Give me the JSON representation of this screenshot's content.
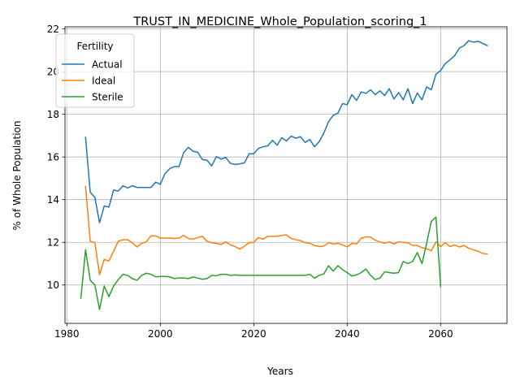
{
  "chart_data": {
    "type": "line",
    "title": "TRUST_IN_MEDICINE_Whole_Population_scoring_1",
    "xlabel": "Years",
    "ylabel": "% of Whole Population",
    "xlim": [
      1979.6,
      2074.2
    ],
    "ylim": [
      8.2,
      22.1
    ],
    "x_ticks": [
      1980,
      2000,
      2020,
      2040,
      2060
    ],
    "y_ticks": [
      10,
      12,
      14,
      16,
      18,
      20,
      22
    ],
    "grid": true,
    "legend": {
      "title": "Fertility",
      "position": "top-left"
    },
    "series": [
      {
        "name": "Actual",
        "color": "#1f77b4",
        "x": [
          1984,
          1985,
          1986,
          1987,
          1988,
          1989,
          1990,
          1991,
          1992,
          1993,
          1994,
          1995,
          1996,
          1997,
          1998,
          1999,
          2000,
          2001,
          2002,
          2003,
          2004,
          2005,
          2006,
          2007,
          2008,
          2009,
          2010,
          2011,
          2012,
          2013,
          2014,
          2015,
          2016,
          2017,
          2018,
          2019,
          2020,
          2021,
          2022,
          2023,
          2024,
          2025,
          2026,
          2027,
          2028,
          2029,
          2030,
          2031,
          2032,
          2033,
          2034,
          2035,
          2036,
          2037,
          2038,
          2039,
          2040,
          2041,
          2042,
          2043,
          2044,
          2045,
          2046,
          2047,
          2048,
          2049,
          2050,
          2051,
          2052,
          2053,
          2054,
          2055,
          2056,
          2057,
          2058,
          2059,
          2060,
          2061,
          2062,
          2063,
          2064,
          2065,
          2066,
          2067,
          2068,
          2069,
          2070
        ],
        "values": [
          16.92,
          14.35,
          14.1,
          12.92,
          13.7,
          13.65,
          14.45,
          14.4,
          14.65,
          14.55,
          14.65,
          14.57,
          14.57,
          14.57,
          14.57,
          14.82,
          14.72,
          15.22,
          15.45,
          15.55,
          15.55,
          16.2,
          16.45,
          16.27,
          16.22,
          15.88,
          15.85,
          15.58,
          16.02,
          15.9,
          15.98,
          15.7,
          15.65,
          15.68,
          15.72,
          16.15,
          16.15,
          16.4,
          16.48,
          16.52,
          16.78,
          16.55,
          16.9,
          16.75,
          16.98,
          16.88,
          16.95,
          16.68,
          16.82,
          16.48,
          16.72,
          17.12,
          17.65,
          17.95,
          18.05,
          18.5,
          18.45,
          18.92,
          18.65,
          19.05,
          18.98,
          19.15,
          18.92,
          19.1,
          18.88,
          19.2,
          18.72,
          19.02,
          18.68,
          19.2,
          18.5,
          19.0,
          18.68,
          19.28,
          19.15,
          19.88,
          20.05,
          20.38,
          20.55,
          20.75,
          21.1,
          21.22,
          21.45,
          21.38,
          21.42,
          21.32,
          21.22
        ]
      },
      {
        "name": "Ideal",
        "color": "#ff7f0e",
        "x": [
          1984,
          1985,
          1986,
          1987,
          1988,
          1989,
          1990,
          1991,
          1992,
          1993,
          1994,
          1995,
          1996,
          1997,
          1998,
          1999,
          2000,
          2001,
          2002,
          2003,
          2004,
          2005,
          2006,
          2007,
          2008,
          2009,
          2010,
          2011,
          2012,
          2013,
          2014,
          2015,
          2016,
          2017,
          2018,
          2019,
          2020,
          2021,
          2022,
          2023,
          2024,
          2025,
          2026,
          2027,
          2028,
          2029,
          2030,
          2031,
          2032,
          2033,
          2034,
          2035,
          2036,
          2037,
          2038,
          2039,
          2040,
          2041,
          2042,
          2043,
          2044,
          2045,
          2046,
          2047,
          2048,
          2049,
          2050,
          2051,
          2052,
          2053,
          2054,
          2055,
          2056,
          2057,
          2058,
          2059,
          2060,
          2061,
          2062,
          2063,
          2064,
          2065,
          2066,
          2067,
          2068,
          2069,
          2070
        ],
        "values": [
          14.62,
          12.05,
          11.98,
          10.48,
          11.2,
          11.12,
          11.58,
          12.05,
          12.12,
          12.12,
          11.98,
          11.78,
          11.95,
          12.02,
          12.3,
          12.3,
          12.2,
          12.2,
          12.2,
          12.18,
          12.2,
          12.32,
          12.18,
          12.15,
          12.22,
          12.28,
          12.05,
          11.98,
          11.95,
          11.9,
          12.02,
          11.88,
          11.8,
          11.68,
          11.82,
          11.98,
          12.0,
          12.22,
          12.15,
          12.28,
          12.28,
          12.28,
          12.32,
          12.35,
          12.18,
          12.12,
          12.08,
          11.98,
          11.95,
          11.85,
          11.8,
          11.82,
          11.98,
          11.92,
          11.95,
          11.88,
          11.78,
          11.95,
          11.92,
          12.2,
          12.25,
          12.25,
          12.1,
          12.02,
          11.95,
          12.02,
          11.92,
          12.02,
          12.0,
          11.98,
          11.85,
          11.85,
          11.75,
          11.7,
          11.6,
          12.02,
          11.8,
          11.98,
          11.8,
          11.88,
          11.78,
          11.85,
          11.72,
          11.65,
          11.58,
          11.48,
          11.45
        ]
      },
      {
        "name": "Sterile",
        "color": "#2ca02c",
        "x": [
          1983,
          1984,
          1985,
          1986,
          1987,
          1988,
          1989,
          1990,
          1991,
          1992,
          1993,
          1994,
          1995,
          1996,
          1997,
          1998,
          1999,
          2000,
          2001,
          2002,
          2003,
          2004,
          2005,
          2006,
          2007,
          2008,
          2009,
          2010,
          2011,
          2012,
          2013,
          2014,
          2015,
          2016,
          2017,
          2018,
          2019,
          2020,
          2021,
          2022,
          2023,
          2024,
          2025,
          2026,
          2027,
          2028,
          2029,
          2030,
          2031,
          2032,
          2033,
          2034,
          2035,
          2036,
          2037,
          2038,
          2039,
          2040,
          2041,
          2042,
          2043,
          2044,
          2045,
          2046,
          2047,
          2048,
          2049,
          2050,
          2051,
          2052,
          2053,
          2054,
          2055,
          2056,
          2057,
          2058,
          2059,
          2060
        ],
        "values": [
          9.38,
          11.65,
          10.22,
          10.0,
          8.85,
          9.95,
          9.45,
          9.95,
          10.25,
          10.5,
          10.45,
          10.3,
          10.22,
          10.45,
          10.55,
          10.5,
          10.38,
          10.4,
          10.4,
          10.38,
          10.3,
          10.33,
          10.33,
          10.3,
          10.37,
          10.32,
          10.27,
          10.3,
          10.45,
          10.43,
          10.5,
          10.5,
          10.45,
          10.47,
          10.45,
          10.45,
          10.45,
          10.45,
          10.45,
          10.45,
          10.45,
          10.45,
          10.45,
          10.45,
          10.45,
          10.45,
          10.45,
          10.45,
          10.45,
          10.5,
          10.32,
          10.45,
          10.52,
          10.9,
          10.65,
          10.9,
          10.72,
          10.58,
          10.42,
          10.47,
          10.58,
          10.75,
          10.45,
          10.25,
          10.32,
          10.62,
          10.58,
          10.55,
          10.58,
          11.1,
          11.0,
          11.1,
          11.52,
          11.0,
          11.95,
          12.98,
          13.18,
          9.92
        ]
      }
    ]
  }
}
